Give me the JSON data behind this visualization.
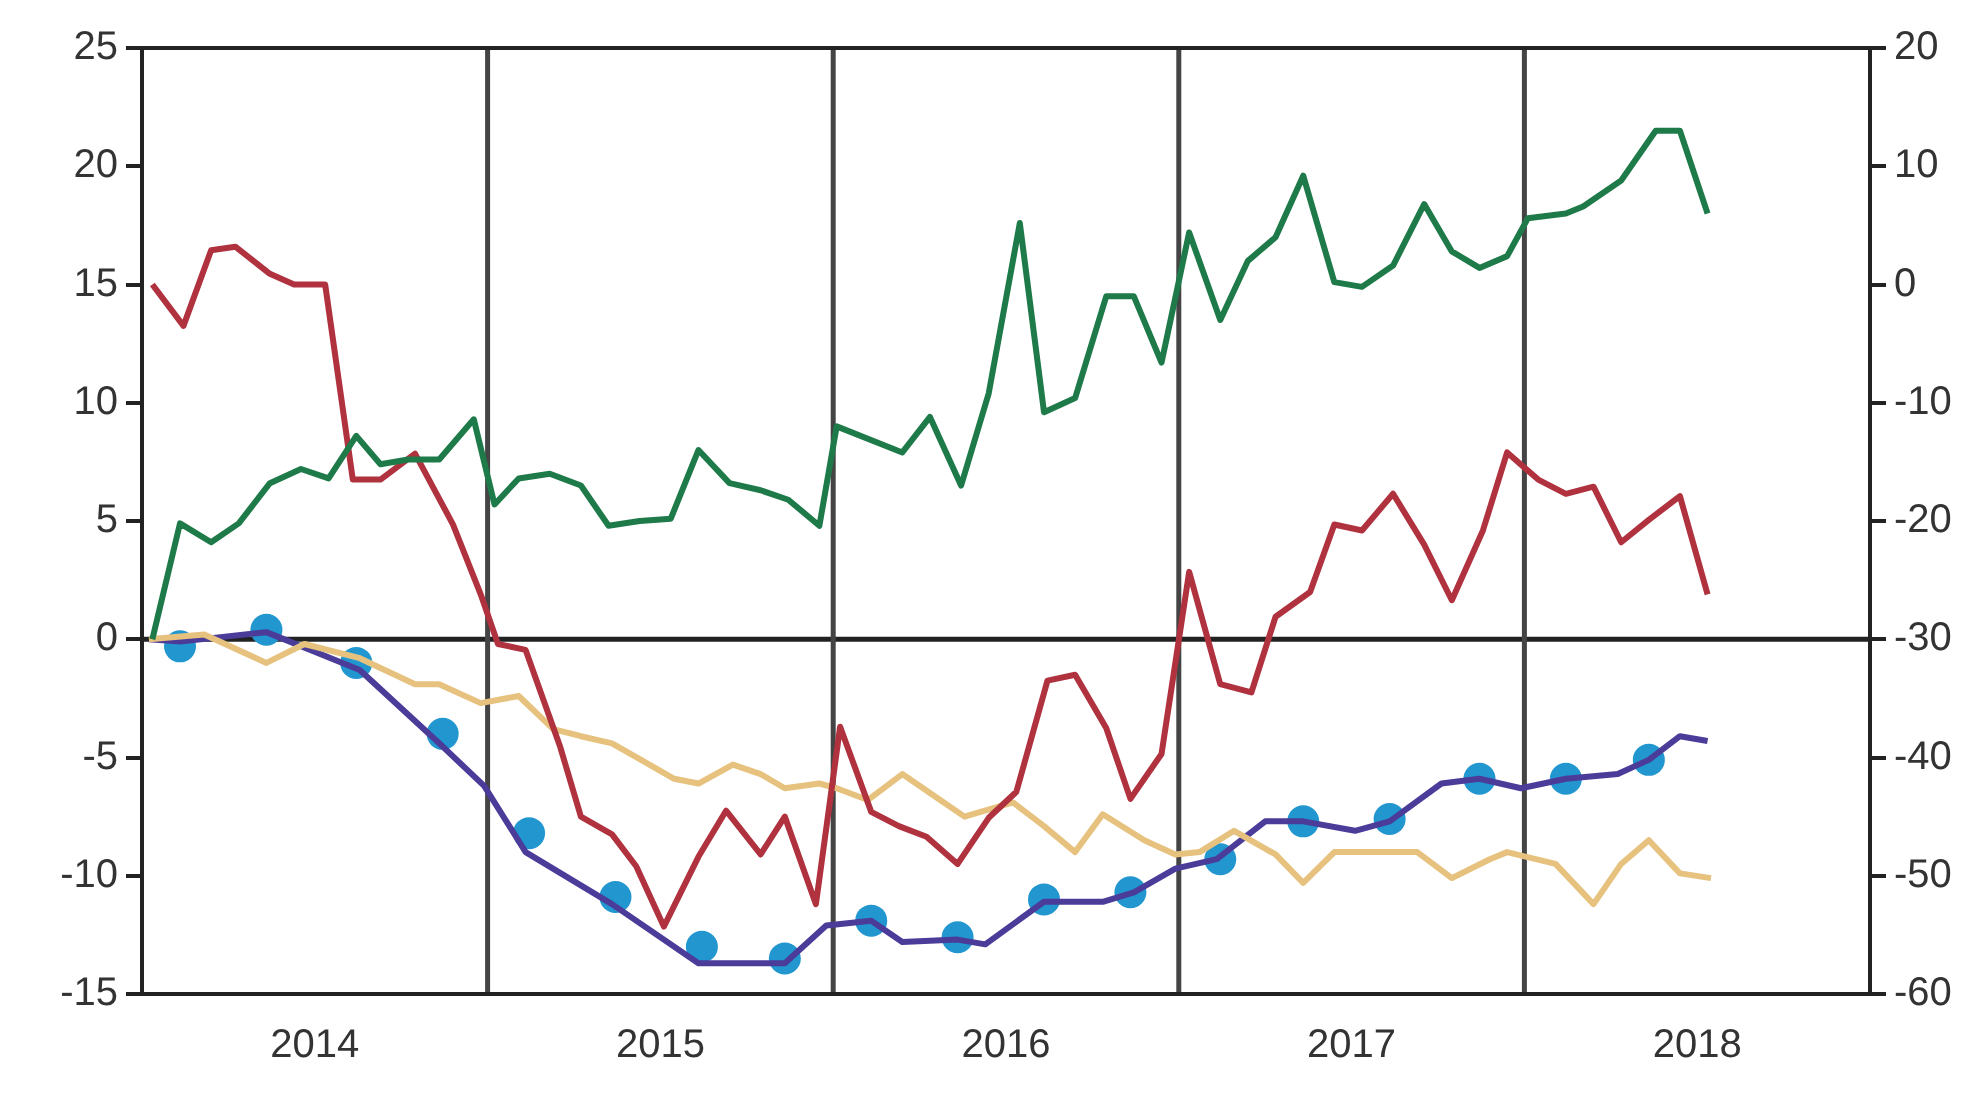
{
  "chart_data": {
    "type": "line",
    "xlim": [
      2014,
      2019
    ],
    "xticks": [
      {
        "value": 2014.5,
        "label": "2014"
      },
      {
        "value": 2015.5,
        "label": "2015"
      },
      {
        "value": 2016.5,
        "label": "2016"
      },
      {
        "value": 2017.5,
        "label": "2017"
      },
      {
        "value": 2018.5,
        "label": "2018"
      }
    ],
    "ylim": [
      -15,
      25
    ],
    "yticks": [
      -15,
      -10,
      -5,
      0,
      5,
      10,
      15,
      20,
      25
    ],
    "y2lim": [
      -60,
      20
    ],
    "y2ticks": [
      -60,
      -50,
      -40,
      -30,
      -20,
      -10,
      0,
      10,
      20
    ],
    "grid": false,
    "legend": false,
    "ref_lines": [
      {
        "axis": "y",
        "value": 0,
        "color": "#222222"
      },
      {
        "axis": "x",
        "value": 2015,
        "color": "#444444"
      },
      {
        "axis": "x",
        "value": 2016,
        "color": "#444444"
      },
      {
        "axis": "x",
        "value": 2017,
        "color": "#444444"
      },
      {
        "axis": "x",
        "value": 2018,
        "color": "#444444"
      }
    ],
    "series": [
      {
        "type": "line",
        "color": "#1f7a4a",
        "marker": "none",
        "x": [
          2014.03,
          2014.11,
          2014.2,
          2014.28,
          2014.37,
          2014.46,
          2014.54,
          2014.62,
          2014.69,
          2014.77,
          2014.86,
          2014.96,
          2015.02,
          2015.09,
          2015.18,
          2015.27,
          2015.35,
          2015.44,
          2015.53,
          2015.61,
          2015.7,
          2015.79,
          2015.87,
          2015.96,
          2016.01,
          2016.2,
          2016.28,
          2016.37,
          2016.45,
          2016.54,
          2016.61,
          2016.7,
          2016.79,
          2016.87,
          2016.95,
          2017.03,
          2017.12,
          2017.2,
          2017.28,
          2017.36,
          2017.45,
          2017.53,
          2017.62,
          2017.71,
          2017.79,
          2017.87,
          2017.95,
          2018.01,
          2018.12,
          2018.17,
          2018.28,
          2018.38,
          2018.45,
          2018.53
        ],
        "values": [
          0,
          4.9,
          4.1,
          4.9,
          6.6,
          7.2,
          6.8,
          8.6,
          7.4,
          7.6,
          7.6,
          9.3,
          5.7,
          6.8,
          7.0,
          6.5,
          4.8,
          5.0,
          5.1,
          8.0,
          6.6,
          6.3,
          5.9,
          4.8,
          9.0,
          7.9,
          9.4,
          6.5,
          10.4,
          17.6,
          9.6,
          10.2,
          14.5,
          14.5,
          11.7,
          17.2,
          13.5,
          16.0,
          17.0,
          19.6,
          15.1,
          14.9,
          15.8,
          18.4,
          16.4,
          15.7,
          16.2,
          17.8,
          18.0,
          18.3,
          19.4,
          21.5,
          21.5,
          18.0
        ]
      },
      {
        "type": "line",
        "color": "#b0323f",
        "marker": "none",
        "axis": "y2",
        "x": [
          2014.03,
          2014.12,
          2014.2,
          2014.27,
          2014.37,
          2014.44,
          2014.53,
          2014.61,
          2014.69,
          2014.79,
          2014.9,
          2014.98,
          2015.03,
          2015.11,
          2015.21,
          2015.27,
          2015.36,
          2015.43,
          2015.51,
          2015.61,
          2015.69,
          2015.79,
          2015.86,
          2015.95,
          2016.02,
          2016.11,
          2016.19,
          2016.27,
          2016.36,
          2016.45,
          2016.53,
          2016.62,
          2016.7,
          2016.79,
          2016.86,
          2016.95,
          2017.03,
          2017.12,
          2017.21,
          2017.28,
          2017.38,
          2017.45,
          2017.53,
          2017.62,
          2017.71,
          2017.79,
          2017.88,
          2017.95,
          2018.04,
          2018.12,
          2018.2,
          2018.28,
          2018.36,
          2018.45,
          2018.53
        ],
        "values": [
          0.0,
          -3.5,
          2.9,
          3.2,
          0.9,
          0.0,
          0.0,
          -16.5,
          -16.5,
          -14.3,
          -20.3,
          -26.2,
          -30.4,
          -30.9,
          -39.1,
          -45.0,
          -46.5,
          -49.2,
          -54.3,
          -48.4,
          -44.5,
          -48.2,
          -45.0,
          -52.4,
          -37.4,
          -44.6,
          -45.8,
          -46.7,
          -49.0,
          -45.1,
          -42.9,
          -33.5,
          -33.0,
          -37.5,
          -43.5,
          -39.7,
          -24.3,
          -33.8,
          -34.5,
          -28.1,
          -26.0,
          -20.3,
          -20.8,
          -17.7,
          -22.0,
          -26.7,
          -20.8,
          -14.2,
          -16.5,
          -17.7,
          -17.1,
          -21.8,
          -19.9,
          -17.9,
          -26.2
        ]
      },
      {
        "type": "line",
        "color": "#e6c27e",
        "marker": "none",
        "x": [
          2014.02,
          2014.18,
          2014.36,
          2014.47,
          2014.63,
          2014.79,
          2014.86,
          2014.98,
          2015.09,
          2015.19,
          2015.27,
          2015.36,
          2015.54,
          2015.61,
          2015.71,
          2015.79,
          2015.86,
          2015.96,
          2016.01,
          2016.1,
          2016.2,
          2016.3,
          2016.38,
          2016.52,
          2016.61,
          2016.7,
          2016.78,
          2016.9,
          2016.99,
          2017.06,
          2017.16,
          2017.28,
          2017.36,
          2017.45,
          2017.55,
          2017.69,
          2017.79,
          2017.9,
          2017.95,
          2018.09,
          2018.2,
          2018.28,
          2018.36,
          2018.45,
          2018.54
        ],
        "values": [
          0,
          0.2,
          -1.0,
          -0.2,
          -0.8,
          -1.9,
          -1.9,
          -2.7,
          -2.4,
          -3.8,
          -4.1,
          -4.4,
          -5.9,
          -6.1,
          -5.3,
          -5.7,
          -6.3,
          -6.1,
          -6.3,
          -6.8,
          -5.7,
          -6.7,
          -7.5,
          -6.9,
          -7.9,
          -9.0,
          -7.4,
          -8.5,
          -9.1,
          -9.0,
          -8.1,
          -9.1,
          -10.3,
          -9.0,
          -9.0,
          -9.0,
          -10.1,
          -9.3,
          -9.0,
          -9.5,
          -11.2,
          -9.5,
          -8.5,
          -9.9,
          -10.1
        ]
      },
      {
        "type": "line",
        "color": "#4b3c9a",
        "marker": "none",
        "x": [
          2014.02,
          2014.11,
          2014.36,
          2014.63,
          2014.86,
          2014.99,
          2015.11,
          2015.36,
          2015.61,
          2015.86,
          2015.98,
          2016.11,
          2016.2,
          2016.36,
          2016.44,
          2016.61,
          2016.78,
          2016.87,
          2016.99,
          2017.11,
          2017.25,
          2017.36,
          2017.51,
          2017.61,
          2017.76,
          2017.87,
          2017.99,
          2018.12,
          2018.27,
          2018.36,
          2018.45,
          2018.53
        ],
        "values": [
          0,
          -0.1,
          0.3,
          -1.3,
          -4.4,
          -6.2,
          -9.0,
          -11.2,
          -13.7,
          -13.7,
          -12.1,
          -11.9,
          -12.8,
          -12.7,
          -12.9,
          -11.1,
          -11.1,
          -10.7,
          -9.7,
          -9.3,
          -7.7,
          -7.7,
          -8.1,
          -7.7,
          -6.1,
          -5.9,
          -6.3,
          -5.9,
          -5.7,
          -5.1,
          -4.1,
          -4.3
        ]
      },
      {
        "type": "scatter",
        "color": "#2196cf",
        "marker": "circle",
        "x": [
          2014.11,
          2014.36,
          2014.62,
          2014.87,
          2015.12,
          2015.37,
          2015.62,
          2015.86,
          2016.11,
          2016.36,
          2016.61,
          2016.86,
          2017.12,
          2017.36,
          2017.61,
          2017.87,
          2018.12,
          2018.36
        ],
        "values": [
          -0.3,
          0.4,
          -1.0,
          -4.0,
          -8.2,
          -10.9,
          -13.0,
          -13.5,
          -11.9,
          -12.6,
          -11.0,
          -10.7,
          -9.3,
          -7.7,
          -7.6,
          -5.9,
          -5.9,
          -5.1
        ]
      }
    ]
  }
}
